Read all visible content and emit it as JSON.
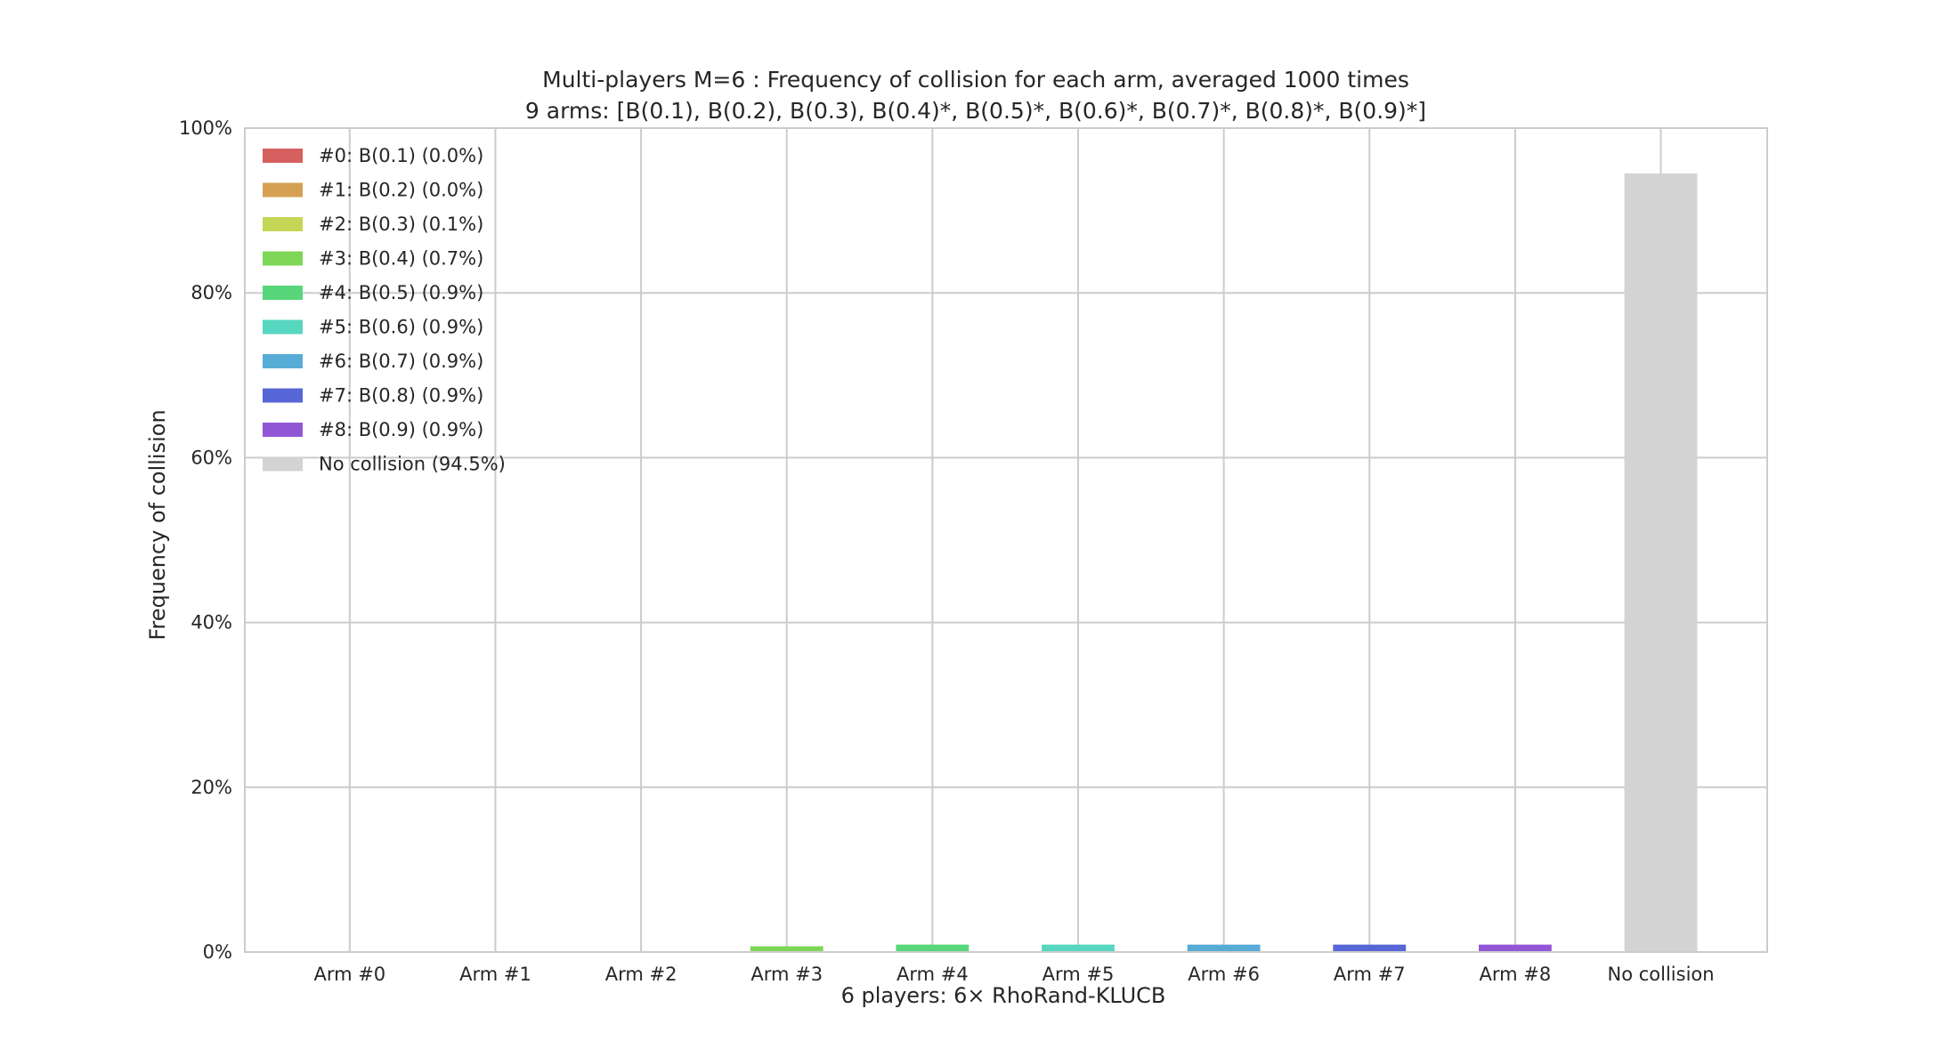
{
  "chart_data": {
    "type": "bar",
    "title": "Multi-players M=6 : Frequency of collision for each arm, averaged 1000 times",
    "subtitle": "9 arms: [B(0.1), B(0.2), B(0.3), B(0.4)*, B(0.5)*, B(0.6)*, B(0.7)*, B(0.8)*, B(0.9)*]",
    "xlabel": "6 players: 6× RhoRand-KLUCB",
    "ylabel": "Frequency of collision",
    "categories": [
      "Arm #0",
      "Arm #1",
      "Arm #2",
      "Arm #3",
      "Arm #4",
      "Arm #5",
      "Arm #6",
      "Arm #7",
      "Arm #8",
      "No collision"
    ],
    "values": [
      0.0,
      0.0,
      0.1,
      0.7,
      0.9,
      0.9,
      0.9,
      0.9,
      0.9,
      94.5
    ],
    "colors": [
      "#d65f5f",
      "#d6a053",
      "#c4d655",
      "#7ed657",
      "#57d67a",
      "#57d6c0",
      "#57acd6",
      "#5766d6",
      "#9257d6",
      "#d3d3d3"
    ],
    "ylim": [
      0,
      100
    ],
    "yticks": [
      "0%",
      "20%",
      "40%",
      "60%",
      "80%",
      "100%"
    ],
    "grid": true,
    "legend_position": "top-left",
    "legend": [
      "#0: B(0.1) (0.0%)",
      "#1: B(0.2) (0.0%)",
      "#2: B(0.3) (0.1%)",
      "#3: B(0.4) (0.7%)",
      "#4: B(0.5) (0.9%)",
      "#5: B(0.6) (0.9%)",
      "#6: B(0.7) (0.9%)",
      "#7: B(0.8) (0.9%)",
      "#8: B(0.9) (0.9%)",
      "No collision (94.5%)"
    ]
  }
}
